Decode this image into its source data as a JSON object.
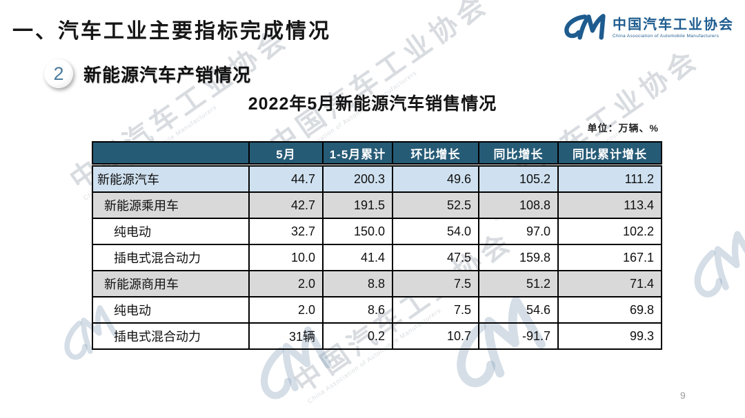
{
  "page": {
    "title": "一、汽车工业主要指标完成情况",
    "page_number": "9"
  },
  "logo": {
    "name": "中国汽车工业协会",
    "subtitle": "China Association of Automobile Manufacturers",
    "brand_color": "#1E5C8F"
  },
  "section": {
    "badge_number": "2",
    "title": "新能源汽车产销情况"
  },
  "table": {
    "title": "2022年5月新能源汽车销售情况",
    "unit_note": "单位：万辆、%",
    "header_bg": "#265B76",
    "highlight_row_bg": "#CFE1F0",
    "group_row_bg": "#D9D9D9",
    "columns": [
      "",
      "5月",
      "1-5月累计",
      "环比增长",
      "同比增长",
      "同比累计增长"
    ],
    "rows": [
      {
        "label": "新能源汽车",
        "indent": 0,
        "style": "highlight",
        "values": [
          "44.7",
          "200.3",
          "49.6",
          "105.2",
          "111.2"
        ]
      },
      {
        "label": "新能源乘用车",
        "indent": 1,
        "style": "group",
        "values": [
          "42.7",
          "191.5",
          "52.5",
          "108.8",
          "113.4"
        ]
      },
      {
        "label": "纯电动",
        "indent": 2,
        "style": "plain",
        "values": [
          "32.7",
          "150.0",
          "54.0",
          "97.0",
          "102.2"
        ]
      },
      {
        "label": "插电式混合动力",
        "indent": 2,
        "style": "plain",
        "values": [
          "10.0",
          "41.4",
          "47.5",
          "159.8",
          "167.1"
        ]
      },
      {
        "label": "新能源商用车",
        "indent": 1,
        "style": "group",
        "values": [
          "2.0",
          "8.8",
          "7.5",
          "51.2",
          "71.4"
        ]
      },
      {
        "label": "纯电动",
        "indent": 2,
        "style": "plain",
        "values": [
          "2.0",
          "8.6",
          "7.5",
          "54.6",
          "69.8"
        ]
      },
      {
        "label": "插电式混合动力",
        "indent": 2,
        "style": "plain",
        "values": [
          "31辆",
          "0.2",
          "10.7",
          "-91.7",
          "99.3"
        ]
      }
    ]
  },
  "watermark": {
    "text": "中国汽车工业协会",
    "subtext": "China Association of Automobile Manufacturers",
    "color": "rgba(125,138,152,0.30)",
    "glyph_color": "rgba(135,160,185,0.35)"
  }
}
